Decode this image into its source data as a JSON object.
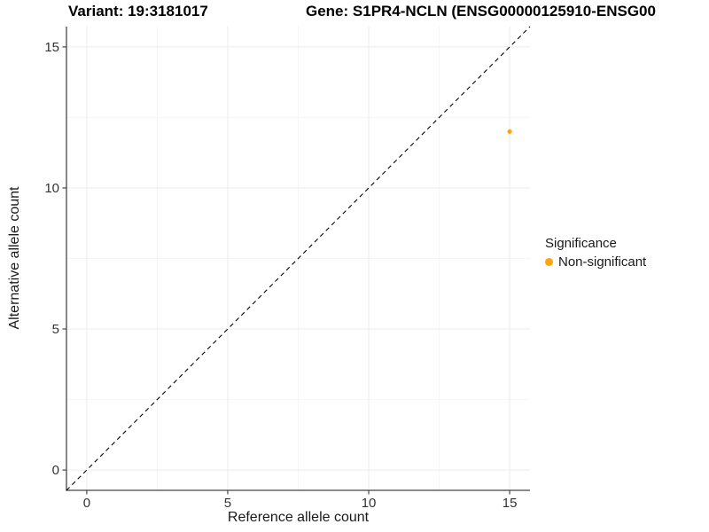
{
  "title": {
    "variant": "Variant: 19:3181017",
    "gene": "Gene: S1PR4-NCLN (ENSG00000125910-ENSG00"
  },
  "chart_data": {
    "type": "scatter",
    "title": "Variant: 19:3181017   Gene: S1PR4-NCLN (ENSG00000125910-ENSG00",
    "xlabel": "Reference allele count",
    "ylabel": "Alternative allele count",
    "xlim": [
      -0.72,
      15.72
    ],
    "ylim": [
      -0.72,
      15.72
    ],
    "x_ticks": [
      0,
      5,
      10,
      15
    ],
    "y_ticks": [
      0,
      5,
      10,
      15
    ],
    "minor_ticks": [
      2.5,
      7.5,
      12.5
    ],
    "grid": true,
    "legend_position": "right",
    "reference_line": {
      "type": "identity",
      "style": "dashed",
      "color": "#000000"
    },
    "series": [
      {
        "name": "Non-significant",
        "color": "#FFA40E",
        "points": [
          {
            "x": 15,
            "y": 12
          }
        ]
      }
    ],
    "legend": {
      "title": "Significance",
      "items": [
        {
          "label": "Non-significant",
          "color": "#FFA40E"
        }
      ]
    },
    "colors": {
      "axis": "#464646",
      "tick_label": "#333333",
      "grid_major": "#EBEBEB",
      "grid_minor": "#F5F5F5",
      "background": "#FFFFFF"
    }
  }
}
